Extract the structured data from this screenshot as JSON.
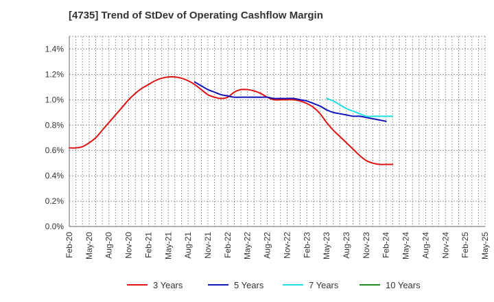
{
  "chart_data": {
    "type": "line",
    "title": "[4735]  Trend of StDev of Operating Cashflow Margin",
    "xlabel": "",
    "ylabel": "",
    "ylim": [
      0,
      1.5
    ],
    "yticks": [
      0.0,
      0.2,
      0.4,
      0.6,
      0.8,
      1.0,
      1.2,
      1.4
    ],
    "ytick_labels": [
      "0.0%",
      "0.2%",
      "0.4%",
      "0.6%",
      "0.8%",
      "1.0%",
      "1.2%",
      "1.4%"
    ],
    "x_start": "Feb-20",
    "x_end": "May-25",
    "x_months_total": 63,
    "xtick_labels": [
      "Feb-20",
      "May-20",
      "Aug-20",
      "Nov-20",
      "Feb-21",
      "May-21",
      "Aug-21",
      "Nov-21",
      "Feb-22",
      "May-22",
      "Aug-22",
      "Nov-22",
      "Feb-23",
      "May-23",
      "Aug-23",
      "Nov-23",
      "Feb-24",
      "May-24",
      "Aug-24",
      "Nov-24",
      "Feb-25",
      "May-25"
    ],
    "grid": true,
    "legend_position": "bottom",
    "series": [
      {
        "name": "3 Years",
        "color": "#dd1111",
        "start_month_index": 0,
        "values": [
          0.62,
          0.62,
          0.63,
          0.66,
          0.7,
          0.76,
          0.82,
          0.88,
          0.94,
          1.0,
          1.05,
          1.09,
          1.12,
          1.15,
          1.17,
          1.18,
          1.18,
          1.17,
          1.15,
          1.12,
          1.08,
          1.04,
          1.02,
          1.01,
          1.02,
          1.06,
          1.08,
          1.08,
          1.07,
          1.05,
          1.02,
          1.0,
          1.0,
          1.0,
          1.0,
          0.99,
          0.97,
          0.94,
          0.89,
          0.82,
          0.76,
          0.71,
          0.66,
          0.61,
          0.56,
          0.52,
          0.5,
          0.49,
          0.49,
          0.49
        ]
      },
      {
        "name": "5 Years",
        "color": "#1111bb",
        "start_month_index": 19,
        "values": [
          1.14,
          1.11,
          1.08,
          1.06,
          1.04,
          1.03,
          1.02,
          1.02,
          1.02,
          1.02,
          1.02,
          1.02,
          1.01,
          1.01,
          1.01,
          1.01,
          1.0,
          0.99,
          0.97,
          0.95,
          0.92,
          0.9,
          0.89,
          0.88,
          0.87,
          0.87,
          0.86,
          0.85,
          0.84,
          0.83
        ]
      },
      {
        "name": "7 Years",
        "color": "#22dddd",
        "start_month_index": 39,
        "values": [
          1.01,
          0.99,
          0.96,
          0.93,
          0.91,
          0.89,
          0.87,
          0.87,
          0.87,
          0.87,
          0.87
        ]
      },
      {
        "name": "10 Years",
        "color": "#228822",
        "start_month_index": 0,
        "values": []
      }
    ]
  }
}
